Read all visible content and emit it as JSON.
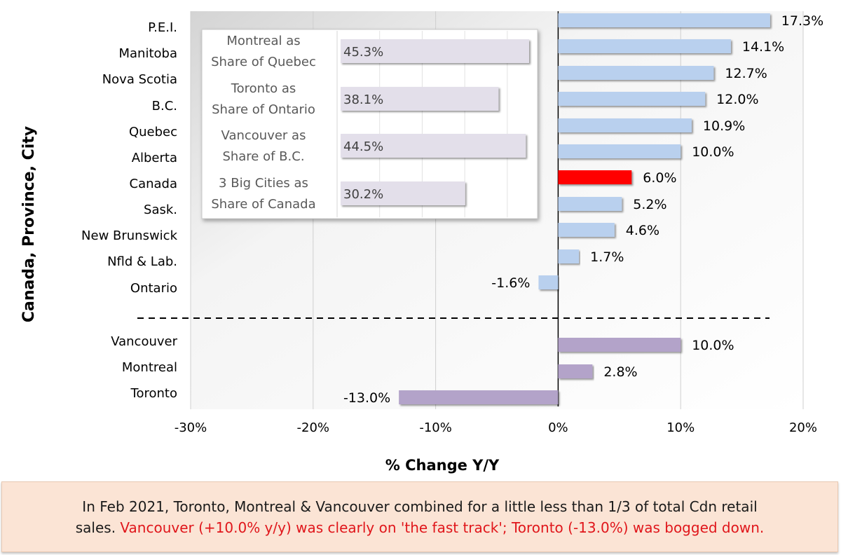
{
  "chart_data": {
    "type": "bar",
    "orientation": "horizontal",
    "title": "",
    "xlabel": "% Change Y/Y",
    "ylabel": "Canada, Province, City",
    "xlim": [
      -30,
      20
    ],
    "xticks": [
      -30,
      -20,
      -10,
      0,
      10,
      20
    ],
    "xtick_labels": [
      "-30%",
      "-20%",
      "-10%",
      "0%",
      "10%",
      "20%"
    ],
    "grid": "vertical",
    "categories": [
      "P.E.I.",
      "Manitoba",
      "Nova Scotia",
      "B.C.",
      "Quebec",
      "Alberta",
      "Canada",
      "Sask.",
      "New Brunswick",
      "Nfld & Lab.",
      "Ontario",
      "Vancouver",
      "Montreal",
      "Toronto"
    ],
    "values": [
      17.3,
      14.1,
      12.7,
      12.0,
      10.9,
      10.0,
      6.0,
      5.2,
      4.6,
      1.7,
      -1.6,
      10.0,
      2.8,
      -13.0
    ],
    "value_labels": [
      "17.3%",
      "14.1%",
      "12.7%",
      "12.0%",
      "10.9%",
      "10.0%",
      "6.0%",
      "5.2%",
      "4.6%",
      "1.7%",
      "-1.6%",
      "10.0%",
      "2.8%",
      "-13.0%"
    ],
    "groups": [
      "region",
      "region",
      "region",
      "region",
      "region",
      "region",
      "national",
      "region",
      "region",
      "region",
      "region",
      "city",
      "city",
      "city"
    ],
    "colors": {
      "region": "#b9d0ee",
      "national": "#ff0000",
      "city": "#b3a3c9",
      "inset": "#e3dfea",
      "separator": "#000000"
    },
    "inset": {
      "type": "bar",
      "orientation": "horizontal",
      "xlim": [
        0,
        50
      ],
      "categories": [
        "Montreal as Share of Quebec",
        "Toronto as Share of Ontario",
        "Vancouver as Share of B.C.",
        "3 Big Cities as Share of Canada"
      ],
      "category_lines": [
        [
          "Montreal as",
          "Share of Quebec"
        ],
        [
          "Toronto as",
          "Share of Ontario"
        ],
        [
          "Vancouver as",
          "Share of B.C."
        ],
        [
          "3 Big Cities as",
          "Share of Canada"
        ]
      ],
      "values": [
        45.3,
        38.1,
        44.5,
        30.2
      ],
      "value_labels": [
        "45.3%",
        "38.1%",
        "44.5%",
        "30.2%"
      ]
    }
  },
  "caption": {
    "line1": "In Feb 2021, Toronto, Montreal & Vancouver combined for a little less than 1/3 of total Cdn retail",
    "line2_prefix": "sales. ",
    "line2_highlight": "Vancouver (+10.0% y/y) was clearly on 'the fast track'; Toronto (-13.0%) was bogged down."
  }
}
